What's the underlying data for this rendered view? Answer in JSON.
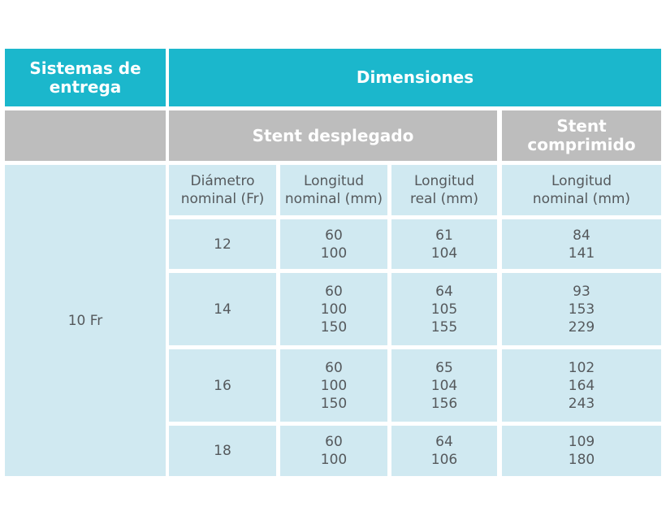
{
  "header": {
    "sistemas": [
      "Sistemas de",
      "entrega"
    ],
    "dimensiones": "Dimensiones",
    "stent_desplegado": "Stent desplegado",
    "stent_comprimido": [
      "Stent",
      "comprimido"
    ]
  },
  "subheader": {
    "diametro": [
      "Diámetro",
      "nominal (Fr)"
    ],
    "longitud_nominal": [
      "Longitud",
      "nominal (mm)"
    ],
    "longitud_real": [
      "Longitud",
      "real (mm)"
    ],
    "longitud_comprimido": [
      "Longitud",
      "nominal (mm)"
    ]
  },
  "system": "10 Fr",
  "rows": [
    {
      "diametro": "12",
      "nominal": [
        "60",
        "100"
      ],
      "real": [
        "61",
        "104"
      ],
      "comprimido": [
        "84",
        "141"
      ]
    },
    {
      "diametro": "14",
      "nominal": [
        "60",
        "100",
        "150"
      ],
      "real": [
        "64",
        "105",
        "155"
      ],
      "comprimido": [
        "93",
        "153",
        "229"
      ]
    },
    {
      "diametro": "16",
      "nominal": [
        "60",
        "100",
        "150"
      ],
      "real": [
        "65",
        "104",
        "156"
      ],
      "comprimido": [
        "102",
        "164",
        "243"
      ]
    },
    {
      "diametro": "18",
      "nominal": [
        "60",
        "100"
      ],
      "real": [
        "64",
        "106"
      ],
      "comprimido": [
        "109",
        "180"
      ]
    }
  ]
}
